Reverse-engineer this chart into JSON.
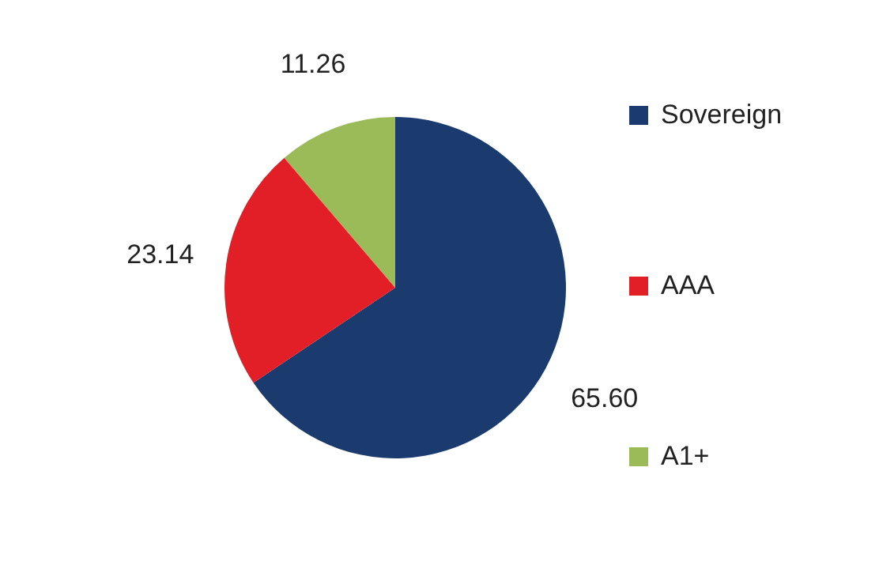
{
  "chart_data": {
    "type": "pie",
    "categories": [
      "Sovereign",
      "AAA",
      "A1+"
    ],
    "values": [
      65.6,
      23.14,
      11.26
    ],
    "colors": [
      "#1b3a6e",
      "#e21f26",
      "#9bbb59"
    ],
    "value_labels": [
      "65.60",
      "23.14",
      "11.26"
    ],
    "legend": "right"
  }
}
